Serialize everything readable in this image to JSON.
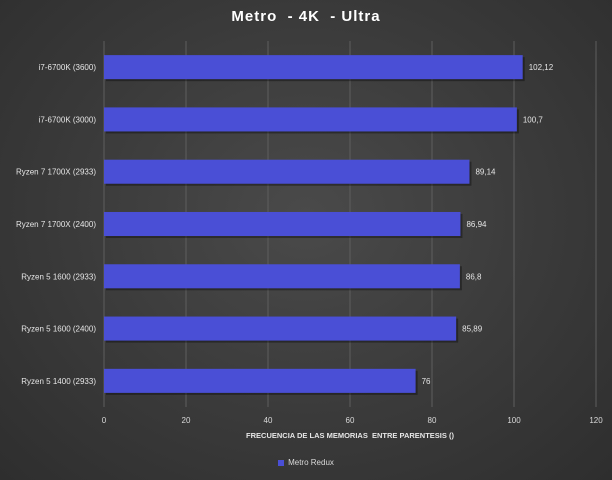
{
  "chart_data": {
    "type": "bar",
    "orientation": "horizontal",
    "title": "Metro  - 4K  - Ultra",
    "xlabel": "FRECUENCIA DE LAS MEMORIAS  ENTRE PARENTESIS ()",
    "categories": [
      "i7-6700K (3600)",
      "i7-6700K (3000)",
      "Ryzen 7 1700X (2933)",
      "Ryzen 7 1700X (2400)",
      "Ryzen 5 1600 (2933)",
      "Ryzen 5 1600 (2400)",
      "Ryzen 5 1400 (2933)"
    ],
    "series": [
      {
        "name": "Metro Redux",
        "values": [
          102.12,
          100.7,
          89.14,
          86.94,
          86.8,
          85.89,
          76
        ],
        "value_labels": [
          "102,12",
          "100,7",
          "89,14",
          "86,94",
          "86,8",
          "85,89",
          "76"
        ],
        "color": "#4a4fd6"
      }
    ],
    "xlim": [
      0,
      120
    ],
    "xticks": [
      0,
      20,
      40,
      60,
      80,
      100,
      120
    ],
    "grid": true,
    "legend_position": "bottom"
  }
}
